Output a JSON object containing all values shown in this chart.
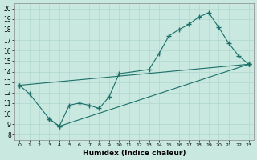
{
  "xlabel": "Humidex (Indice chaleur)",
  "bg_color": "#c8e8e0",
  "grid_color": "#b0d8d0",
  "line_color": "#1a7068",
  "xlim": [
    -0.5,
    23.5
  ],
  "ylim": [
    7.5,
    20.5
  ],
  "xticks": [
    0,
    1,
    2,
    3,
    4,
    5,
    6,
    7,
    8,
    9,
    10,
    11,
    12,
    13,
    14,
    15,
    16,
    17,
    18,
    19,
    20,
    21,
    22,
    23
  ],
  "yticks": [
    8,
    9,
    10,
    11,
    12,
    13,
    14,
    15,
    16,
    17,
    18,
    19,
    20
  ],
  "series": [
    {
      "x": [
        0,
        1,
        3,
        4,
        5,
        6,
        7,
        8,
        9,
        10,
        13,
        14,
        15,
        16,
        17,
        18,
        19,
        20,
        21,
        22,
        23
      ],
      "y": [
        12.7,
        11.9,
        9.5,
        8.8,
        10.8,
        11.0,
        10.8,
        10.5,
        11.6,
        13.8,
        14.2,
        15.7,
        17.4,
        18.0,
        18.5,
        19.2,
        19.6,
        18.2,
        16.7,
        15.5,
        14.7
      ]
    },
    {
      "x": [
        0,
        23
      ],
      "y": [
        12.7,
        14.7
      ]
    },
    {
      "x": [
        3,
        4,
        23
      ],
      "y": [
        9.5,
        8.8,
        14.7
      ]
    }
  ]
}
